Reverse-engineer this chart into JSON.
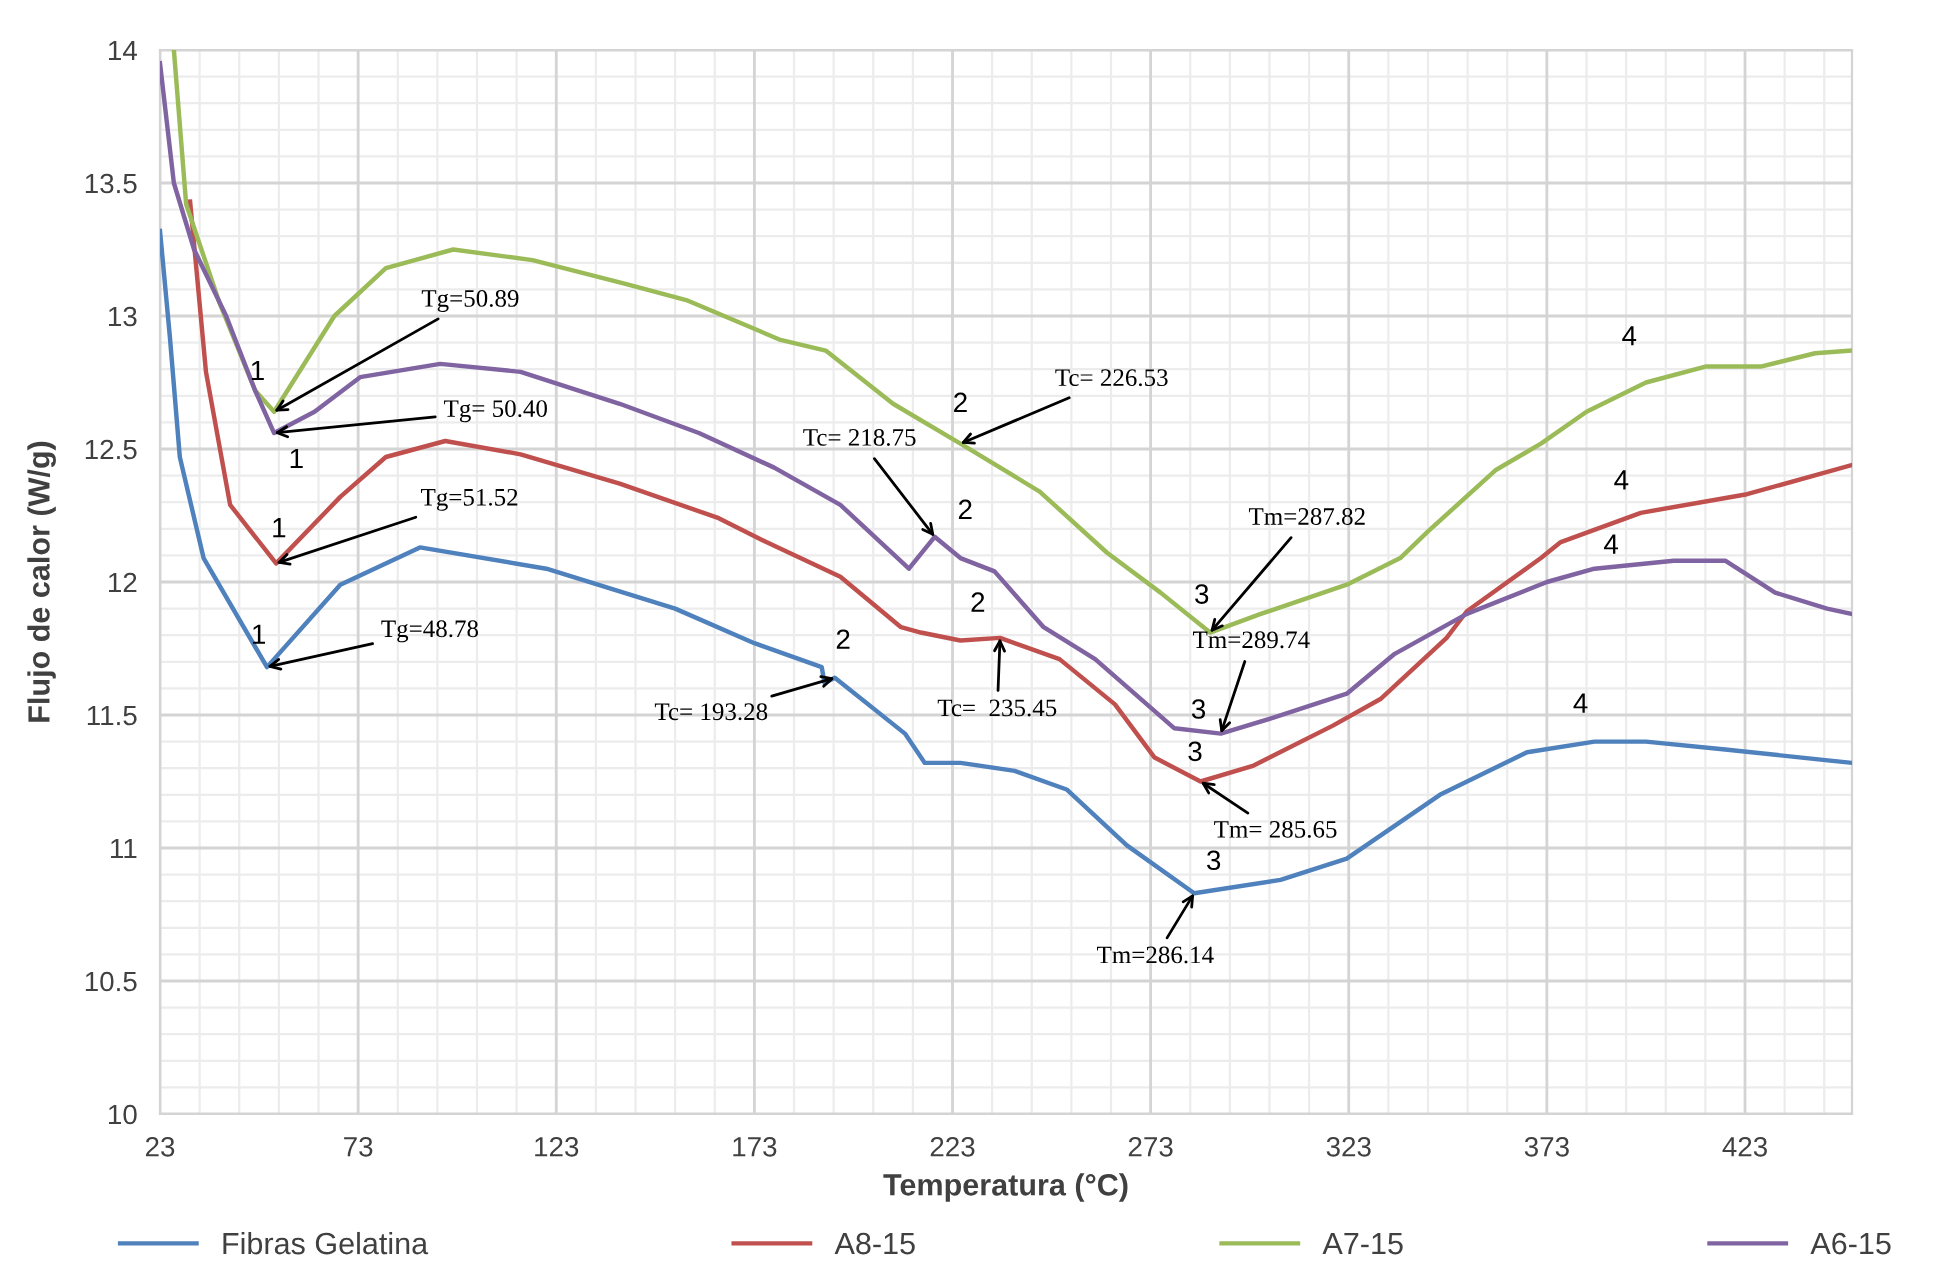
{
  "chart_data": {
    "type": "line",
    "xlabel": "Temperatura (°C)",
    "ylabel": "Flujo de calor (W/g)",
    "xlim": [
      23,
      450
    ],
    "xticks": [
      23,
      73,
      123,
      173,
      223,
      273,
      323,
      373,
      423
    ],
    "ylim": [
      10,
      14
    ],
    "yticks": [
      10,
      10.5,
      11,
      11.5,
      12,
      12.5,
      13,
      13.5,
      14
    ],
    "grid": true,
    "legend": "bottom",
    "marker": "none",
    "line_style": "solid",
    "series": [
      {
        "name": "Fibras Gelatina",
        "color": "#4f81bd",
        "x": [
          23,
          25.5,
          28,
          34,
          50,
          68.5,
          88.6,
          120.5,
          153,
          173,
          190,
          190.7,
          193.3,
          211,
          216,
          225,
          238.7,
          251.8,
          267,
          284,
          305.8,
          322.5,
          346,
          368,
          385,
          398,
          418,
          450
        ],
        "values": [
          13.32,
          12.92,
          12.47,
          12.09,
          11.68,
          11.99,
          12.13,
          12.05,
          11.9,
          11.77,
          11.68,
          11.62,
          11.64,
          11.43,
          11.32,
          11.32,
          11.29,
          11.22,
          11.01,
          10.83,
          10.88,
          10.96,
          11.2,
          11.36,
          11.4,
          11.4,
          11.37,
          11.32
        ]
      },
      {
        "name": "A8-15",
        "color": "#c0504d",
        "x": [
          30.6,
          34.6,
          40.7,
          52.3,
          68.5,
          80,
          95,
          114,
          139,
          164,
          176,
          194.7,
          210,
          215,
          225,
          235,
          250,
          264,
          274,
          285.6,
          299,
          319,
          331,
          347.7,
          352.8,
          371.5,
          376.5,
          396.7,
          423.5,
          450
        ],
        "values": [
          13.43,
          12.79,
          12.29,
          12.07,
          12.32,
          12.47,
          12.53,
          12.48,
          12.37,
          12.24,
          12.15,
          12.02,
          11.83,
          11.81,
          11.78,
          11.79,
          11.71,
          11.54,
          11.34,
          11.25,
          11.31,
          11.46,
          11.56,
          11.79,
          11.89,
          12.09,
          12.15,
          12.26,
          12.33,
          12.44
        ]
      },
      {
        "name": "A7-15",
        "color": "#9bbb59",
        "x": [
          26.5,
          29.6,
          38,
          47,
          51.8,
          67,
          80,
          97,
          117,
          140.7,
          155.8,
          179.6,
          191,
          208,
          225,
          245,
          262,
          275.5,
          288,
          300.8,
          322.5,
          336,
          343,
          360,
          371.5,
          383,
          398,
          413,
          427,
          440.7,
          450
        ],
        "values": [
          14.0,
          13.42,
          13.05,
          12.72,
          12.64,
          13.0,
          13.18,
          13.25,
          13.21,
          13.12,
          13.06,
          12.91,
          12.87,
          12.67,
          12.52,
          12.34,
          12.11,
          11.96,
          11.81,
          11.88,
          11.99,
          12.09,
          12.19,
          12.42,
          12.52,
          12.64,
          12.75,
          12.81,
          12.81,
          12.86,
          12.87
        ]
      },
      {
        "name": "A6-15",
        "color": "#8064a2",
        "x": [
          23,
          26.5,
          31.6,
          39.7,
          47,
          51.8,
          62,
          73.5,
          93.7,
          114,
          139,
          159,
          178,
          194.7,
          212,
          218.5,
          225,
          233.6,
          246,
          259,
          279,
          290.7,
          304,
          322.5,
          334.6,
          352.8,
          373,
          385,
          405,
          418,
          430.6,
          443.7,
          450
        ],
        "values": [
          13.95,
          13.5,
          13.25,
          13.0,
          12.72,
          12.56,
          12.64,
          12.77,
          12.82,
          12.79,
          12.67,
          12.56,
          12.43,
          12.29,
          12.05,
          12.17,
          12.09,
          12.04,
          11.83,
          11.71,
          11.45,
          11.43,
          11.49,
          11.58,
          11.73,
          11.88,
          12.0,
          12.05,
          12.08,
          12.08,
          11.96,
          11.9,
          11.88
        ]
      }
    ],
    "annotations": [
      {
        "text": "Tg=50.89",
        "x": 51.8,
        "y": 12.64
      },
      {
        "text": "Tg= 50.40",
        "x": 51.8,
        "y": 12.56
      },
      {
        "text": "Tg=51.52",
        "x": 52.3,
        "y": 12.07
      },
      {
        "text": "Tg=48.78",
        "x": 50,
        "y": 11.68
      },
      {
        "text": "Tc= 193.28",
        "x": 193.3,
        "y": 11.64
      },
      {
        "text": "Tc= 226.53",
        "x": 225,
        "y": 12.52
      },
      {
        "text": "Tc= 218.75",
        "x": 218.5,
        "y": 12.17
      },
      {
        "text": "Tc=  235.45",
        "x": 235,
        "y": 11.79
      },
      {
        "text": "Tm=287.82",
        "x": 288,
        "y": 11.81
      },
      {
        "text": "Tm=289.74",
        "x": 290.7,
        "y": 11.43
      },
      {
        "text": "Tm= 285.65",
        "x": 285.6,
        "y": 11.25
      },
      {
        "text": "Tm=286.14",
        "x": 284,
        "y": 10.83
      },
      {
        "text": "1",
        "x": 51.8,
        "y": 12.64
      },
      {
        "text": "1",
        "x": 51.8,
        "y": 12.56
      },
      {
        "text": "1",
        "x": 52.3,
        "y": 12.07
      },
      {
        "text": "1",
        "x": 50,
        "y": 11.68
      },
      {
        "text": "2",
        "x": 193.3,
        "y": 11.64
      },
      {
        "text": "2",
        "x": 225,
        "y": 12.52
      },
      {
        "text": "2",
        "x": 218.5,
        "y": 12.17
      },
      {
        "text": "2",
        "x": 235,
        "y": 11.79
      },
      {
        "text": "3",
        "x": 288,
        "y": 11.81
      },
      {
        "text": "3",
        "x": 290.7,
        "y": 11.43
      },
      {
        "text": "3",
        "x": 285.6,
        "y": 11.25
      },
      {
        "text": "3",
        "x": 284,
        "y": 10.83
      },
      {
        "text": "4",
        "x": 398,
        "y": 12.75
      },
      {
        "text": "4",
        "x": 396.7,
        "y": 12.26
      },
      {
        "text": "4",
        "x": 385,
        "y": 12.05
      },
      {
        "text": "4",
        "x": 385,
        "y": 11.4
      }
    ]
  }
}
